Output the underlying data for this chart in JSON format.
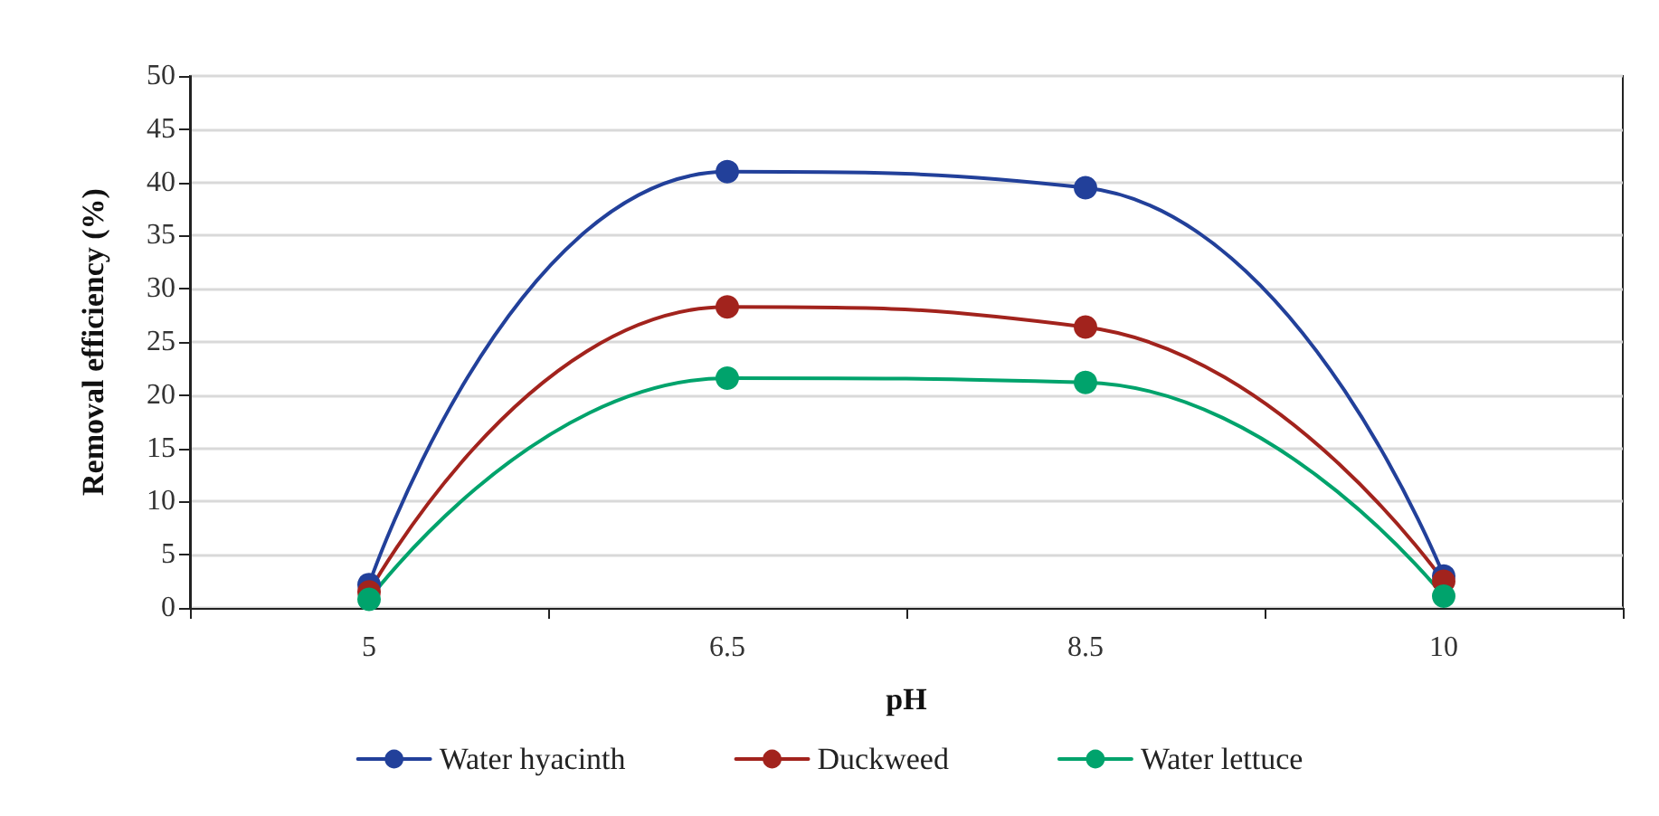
{
  "chart_data": {
    "type": "line",
    "xlabel": "pH",
    "ylabel": "Removal efficiency (%)",
    "categories": [
      "5",
      "6.5",
      "8.5",
      "10"
    ],
    "series": [
      {
        "name": "Water hyacinth",
        "color": "#22409a",
        "values": [
          2.2,
          41,
          39.5,
          3.0
        ]
      },
      {
        "name": "Duckweed",
        "color": "#a2231d",
        "values": [
          1.5,
          28.3,
          26.4,
          2.5
        ]
      },
      {
        "name": "Water lettuce",
        "color": "#00a36c",
        "values": [
          0.8,
          21.6,
          21.2,
          1.1
        ]
      }
    ],
    "ylim": [
      0,
      50
    ],
    "yticks": [
      0,
      5,
      10,
      15,
      20,
      25,
      30,
      35,
      40,
      45,
      50
    ],
    "grid": "y",
    "legend": "bottom",
    "marker": "circle",
    "line_style": "solid"
  }
}
